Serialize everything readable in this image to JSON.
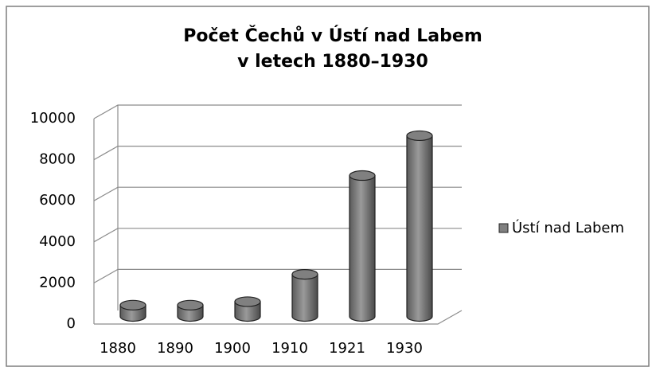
{
  "chart_data": {
    "type": "bar3d",
    "title": [
      "Počet Čechů v Ústí nad Labem",
      "v letech 1880–1930"
    ],
    "categories": [
      "1880",
      "1890",
      "1900",
      "1910",
      "1921",
      "1930"
    ],
    "series": [
      {
        "name": "Ústí nad Labem",
        "color": "#808080",
        "values": [
          550,
          550,
          720,
          2050,
          6860,
          8800
        ]
      }
    ],
    "ylim": [
      0,
      10000
    ],
    "yticks": [
      0,
      2000,
      4000,
      6000,
      8000,
      10000
    ],
    "grid": true,
    "legend": "right"
  }
}
